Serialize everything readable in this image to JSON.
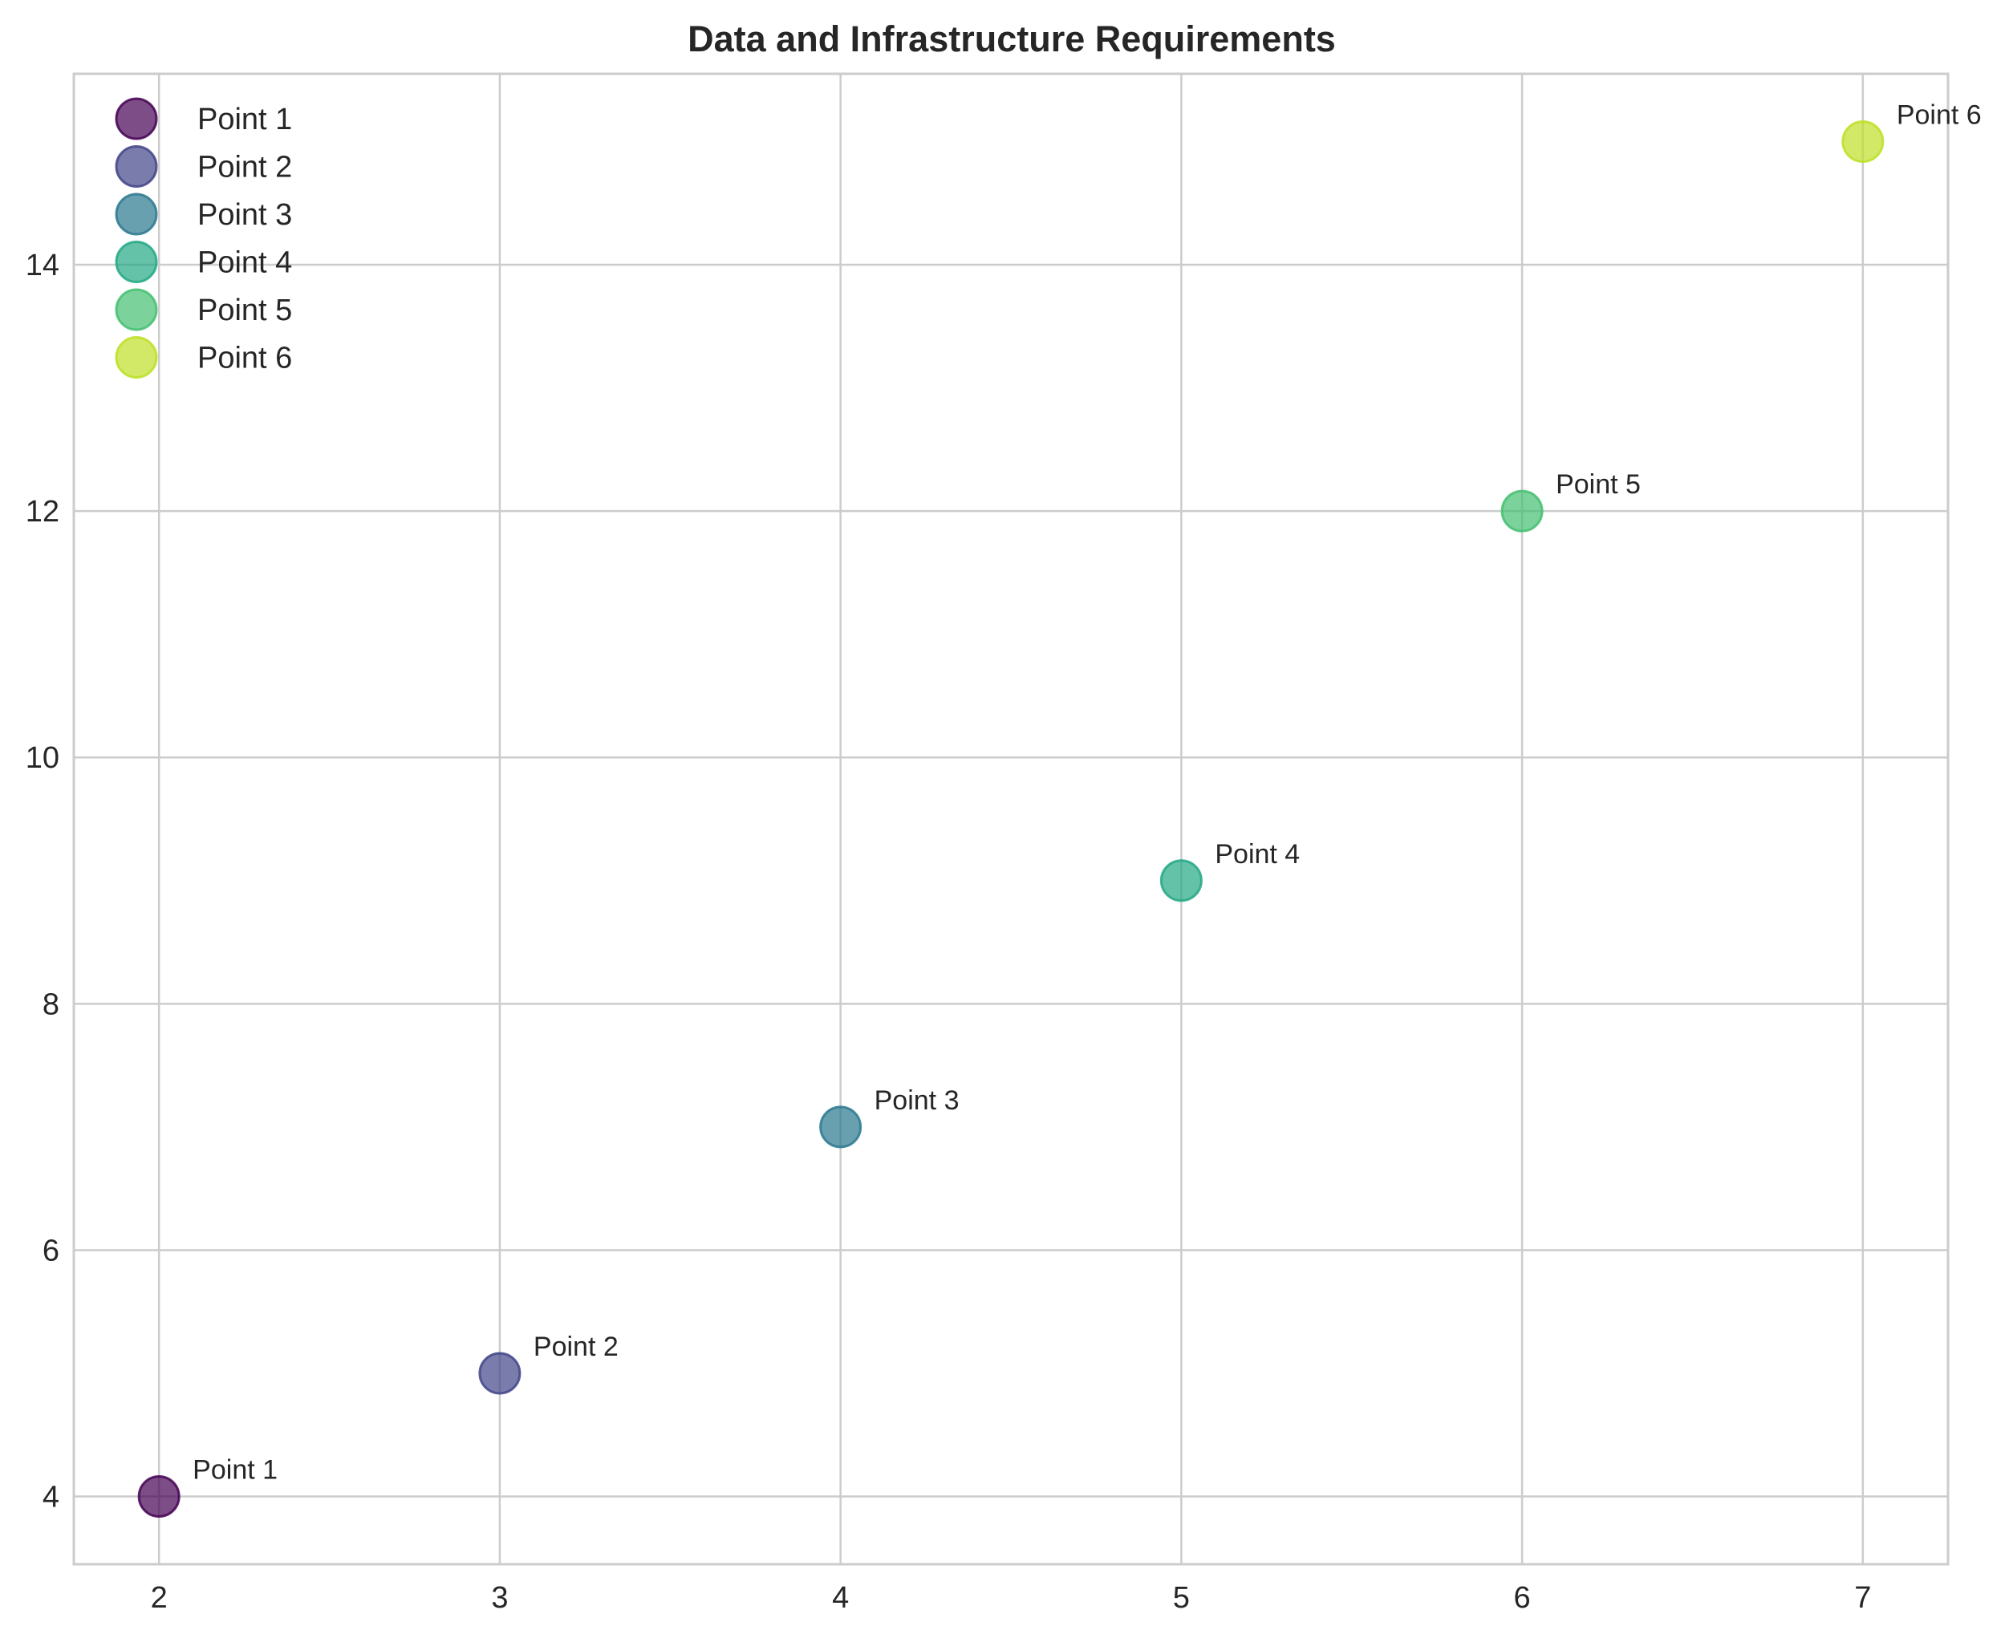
{
  "chart_data": {
    "type": "scatter",
    "title": "Data and Infrastructure Requirements",
    "xlabel": "",
    "ylabel": "",
    "xlim": [
      1.75,
      7.25
    ],
    "ylim": [
      3.45,
      15.55
    ],
    "xticks": [
      2,
      3,
      4,
      5,
      6,
      7
    ],
    "yticks": [
      4,
      6,
      8,
      10,
      12,
      14
    ],
    "grid": true,
    "legend_position": "top-left",
    "points": [
      {
        "name": "Point 1",
        "x": 2,
        "y": 4,
        "label": "Point 1",
        "color": "#440154"
      },
      {
        "name": "Point 2",
        "x": 3,
        "y": 5,
        "label": "Point 2",
        "color": "#414487"
      },
      {
        "name": "Point 3",
        "x": 4,
        "y": 7,
        "label": "Point 3",
        "color": "#2a788e"
      },
      {
        "name": "Point 4",
        "x": 5,
        "y": 9,
        "label": "Point 4",
        "color": "#22a884"
      },
      {
        "name": "Point 5",
        "x": 6,
        "y": 12,
        "label": "Point 5",
        "color": "#44bf70"
      },
      {
        "name": "Point 6",
        "x": 7,
        "y": 15,
        "label": "Point 6",
        "color": "#bddf26"
      }
    ],
    "colors": {
      "grid": "#cccccc",
      "spine": "#cccccc",
      "text": "#262626"
    }
  }
}
